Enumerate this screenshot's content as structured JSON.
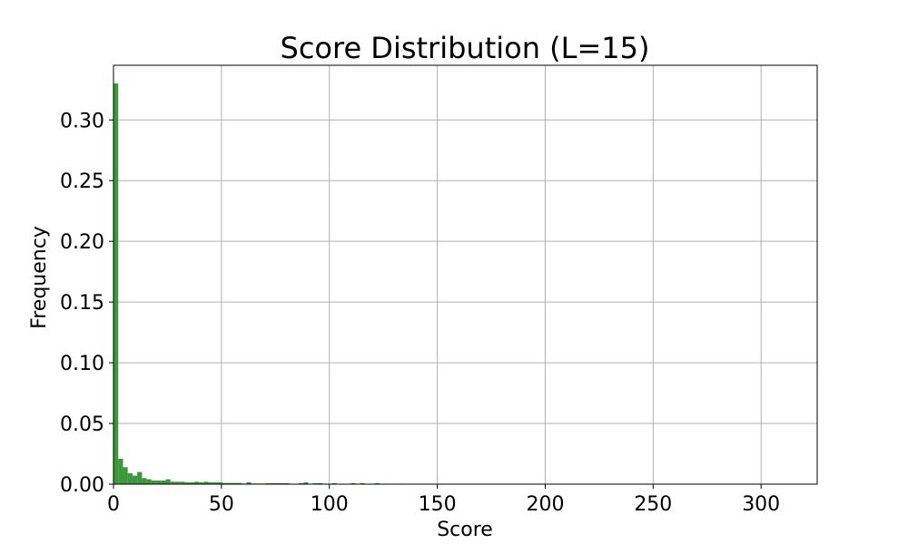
{
  "chart_data": {
    "type": "bar",
    "title": "Score Distribution (L=15)",
    "xlabel": "Score",
    "ylabel": "Frequency",
    "xlim": [
      0,
      326
    ],
    "ylim": [
      0,
      0.345
    ],
    "xticks": [
      0,
      50,
      100,
      150,
      200,
      250,
      300
    ],
    "xtick_labels": [
      "0",
      "50",
      "100",
      "150",
      "200",
      "250",
      "300"
    ],
    "yticks": [
      0.0,
      0.05,
      0.1,
      0.15,
      0.2,
      0.25,
      0.3
    ],
    "ytick_labels": [
      "0.00",
      "0.05",
      "0.10",
      "0.15",
      "0.20",
      "0.25",
      "0.30"
    ],
    "grid": true,
    "bar_color": "#3a9a3a",
    "bin_width": 2.2,
    "bin_starts": [
      0,
      2.2,
      4.4,
      6.6,
      8.8,
      11,
      13.2,
      15.4,
      17.6,
      19.8,
      22,
      24.2,
      26.4,
      28.6,
      30.8,
      33,
      35.2,
      37.4,
      39.6,
      41.8,
      44,
      46.2,
      48.4,
      50.6,
      52.8,
      55,
      57.2,
      59.4,
      61.6,
      63.8,
      66,
      68.2,
      70.4,
      72.6,
      74.8,
      77,
      79.2,
      81.4,
      83.6,
      85.8,
      88,
      90.2,
      92.4,
      94.6,
      96.8,
      99,
      101.2,
      103.4,
      105.6,
      107.8,
      110,
      112.2,
      114.4,
      116.6,
      118.8,
      121,
      123.2,
      125.4,
      127.6,
      129.8,
      132
    ],
    "values": [
      0.33,
      0.021,
      0.014,
      0.009,
      0.007,
      0.01,
      0.005,
      0.004,
      0.003,
      0.003,
      0.003,
      0.004,
      0.002,
      0.002,
      0.002,
      0.0015,
      0.0015,
      0.002,
      0.0015,
      0.002,
      0.0015,
      0.0015,
      0.0015,
      0.001,
      0.001,
      0.001,
      0.001,
      0.0005,
      0.0015,
      0.0005,
      0.0005,
      0.0005,
      0.0008,
      0.0008,
      0.0008,
      0.0008,
      0.0008,
      0.0004,
      0.0004,
      0.0008,
      0.0015,
      0.0004,
      0.0008,
      0.0008,
      0.0004,
      0.0,
      0.0008,
      0.0,
      0.0004,
      0.0,
      0.0008,
      0.0,
      0.0008,
      0.0,
      0.0004,
      0.0008,
      0.0004,
      0.0004,
      0.0,
      0.0004,
      0.0004
    ]
  }
}
